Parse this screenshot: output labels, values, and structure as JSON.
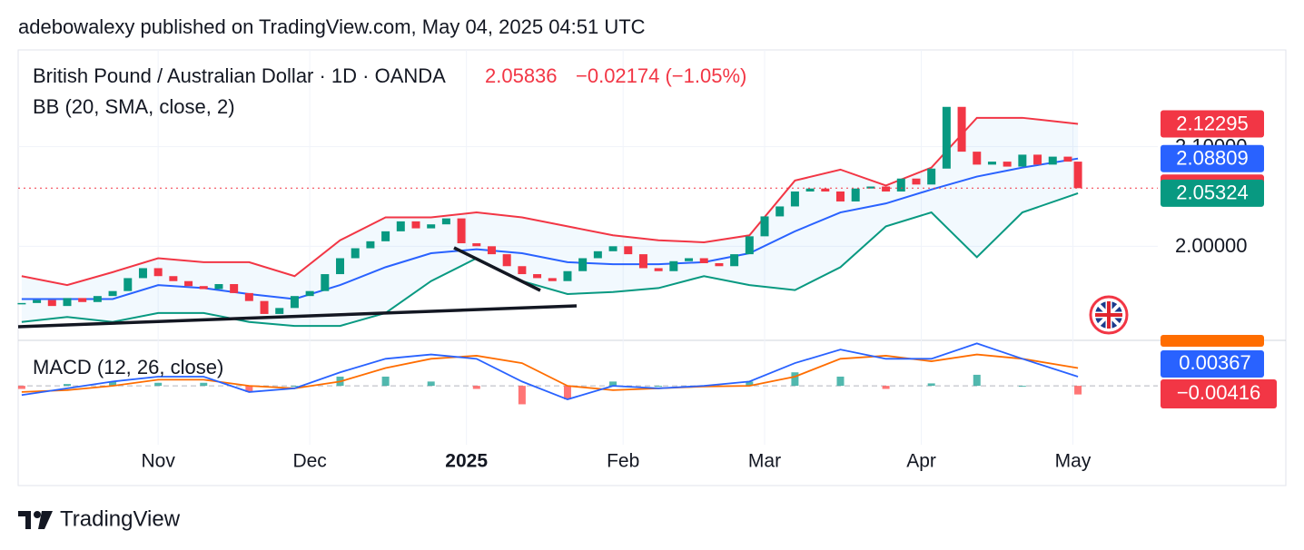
{
  "header": "adebowalexy published on TradingView.com, May 04, 2025 04:51 UTC",
  "footer": "TradingView",
  "chart_data": {
    "type": "candlestick",
    "title": "British Pound / Australian Dollar · 1D · OANDA",
    "last_price": "2.05836",
    "change": "−0.02174 (−1.05%)",
    "xlim": [
      3.3,
      227.9
    ],
    "ylim": [
      1.9055,
      2.1972
    ],
    "yticks": [
      {
        "value": 2.0,
        "label": "2.00000"
      },
      {
        "value": 2.1,
        "label": "2.10000"
      }
    ],
    "xticks": [
      {
        "value": 31,
        "label": "Nov"
      },
      {
        "value": 61,
        "label": "Dec"
      },
      {
        "value": 92,
        "label": "2025"
      },
      {
        "value": 123,
        "label": "Feb"
      },
      {
        "value": 151,
        "label": "Mar"
      },
      {
        "value": 182,
        "label": "Apr"
      },
      {
        "value": 212,
        "label": "May"
      }
    ],
    "grid": true,
    "up_color": "#089981",
    "down_color": "#f23645",
    "candles": {
      "x": [
        4,
        7,
        10,
        13,
        16,
        19,
        22,
        25,
        28,
        31,
        34,
        37,
        40,
        43,
        46,
        49,
        52,
        55,
        58,
        61,
        64,
        67,
        70,
        73,
        76,
        79,
        82,
        85,
        88,
        91,
        94,
        97,
        100,
        103,
        106,
        109,
        112,
        115,
        118,
        121,
        124,
        127,
        130,
        133,
        136,
        139,
        142,
        145,
        148,
        151,
        154,
        157,
        160,
        163,
        166,
        169,
        172,
        175,
        178,
        181,
        184,
        187,
        190,
        193,
        196,
        199,
        202,
        205,
        208,
        211,
        213
      ],
      "close": [
        1.943,
        1.946,
        1.94,
        1.948,
        1.944,
        1.95,
        1.955,
        1.968,
        1.978,
        1.97,
        1.965,
        1.96,
        1.957,
        1.962,
        1.953,
        1.945,
        1.932,
        1.938,
        1.95,
        1.955,
        1.972,
        1.988,
        1.998,
        2.005,
        2.015,
        2.025,
        2.018,
        2.022,
        2.028,
        2.003,
        2.0,
        1.992,
        1.98,
        1.972,
        1.968,
        1.965,
        1.975,
        1.988,
        1.995,
        2.0,
        1.992,
        1.978,
        1.975,
        1.985,
        1.988,
        1.983,
        1.98,
        1.992,
        2.01,
        2.03,
        2.04,
        2.055,
        2.058,
        2.055,
        2.045,
        2.058,
        2.06,
        2.055,
        2.068,
        2.062,
        2.078,
        2.14,
        2.095,
        2.082,
        2.085,
        2.08,
        2.092,
        2.082,
        2.09,
        2.085,
        2.05836
      ]
    },
    "bb": {
      "name": "BB (20, SMA, close, 2)",
      "colors": {
        "upper": "#f23645",
        "middle": "#2962ff",
        "lower": "#089981"
      },
      "x": [
        4,
        13,
        22,
        31,
        40,
        49,
        58,
        67,
        76,
        85,
        94,
        103,
        112,
        121,
        130,
        139,
        148,
        157,
        166,
        175,
        184,
        193,
        202,
        213
      ],
      "upper": [
        1.97,
        1.961,
        1.974,
        1.988,
        1.984,
        1.984,
        1.97,
        2.006,
        2.029,
        2.029,
        2.034,
        2.029,
        2.02,
        2.011,
        2.006,
        2.004,
        2.011,
        2.066,
        2.077,
        2.061,
        2.079,
        2.129,
        2.129,
        2.12295
      ],
      "middle": [
        1.947,
        1.947,
        1.947,
        1.961,
        1.958,
        1.952,
        1.947,
        1.961,
        1.979,
        1.993,
        1.997,
        1.993,
        1.984,
        1.982,
        1.982,
        1.984,
        1.993,
        2.015,
        2.034,
        2.043,
        2.057,
        2.07,
        2.079,
        2.08809
      ],
      "lower": [
        1.924,
        1.929,
        1.924,
        1.933,
        1.933,
        1.924,
        1.92,
        1.92,
        1.933,
        1.965,
        1.988,
        1.965,
        1.952,
        1.954,
        1.958,
        1.97,
        1.961,
        1.956,
        1.979,
        2.02,
        2.034,
        1.989,
        2.034,
        2.05324
      ]
    },
    "price_badges": [
      {
        "value": 2.12295,
        "label": "2.12295",
        "color": "#f23645"
      },
      {
        "value": 2.08809,
        "label": "2.08809",
        "color": "#2962ff"
      },
      {
        "value": 2.05836,
        "label": "2.05836",
        "color": "#f23645"
      },
      {
        "value": 2.05324,
        "label": "2.05324",
        "color": "#089981"
      }
    ],
    "macd": {
      "name": "MACD (12, 26, close)",
      "ylim": [
        -0.0081,
        0.0074
      ],
      "colors": {
        "macd": "#2962ff",
        "signal": "#ff6d00",
        "up": "#26a69a",
        "down": "#ff5252"
      },
      "x": [
        4,
        13,
        22,
        31,
        40,
        49,
        58,
        67,
        76,
        85,
        94,
        103,
        112,
        121,
        130,
        139,
        148,
        157,
        166,
        175,
        184,
        193,
        202,
        213
      ],
      "macd": [
        -0.0015,
        -0.0004,
        0.0007,
        0.0015,
        0.0015,
        -0.001,
        -0.0004,
        0.0022,
        0.0044,
        0.0051,
        0.0044,
        0.0007,
        -0.0022,
        0,
        -0.0004,
        0,
        0.0007,
        0.0037,
        0.0059,
        0.0044,
        0.0044,
        0.0069,
        0.0044,
        0.0015
      ],
      "signal": [
        -0.001,
        -0.0007,
        0,
        0.001,
        0.001,
        0,
        -0.0004,
        0.0007,
        0.0029,
        0.0044,
        0.0049,
        0.0037,
        0,
        -0.0007,
        -0.0004,
        -0.0001,
        0,
        0.0015,
        0.0044,
        0.0049,
        0.004,
        0.0051,
        0.0044,
        0.0029
      ],
      "histogram": [
        -0.0005,
        0.0003,
        0.0007,
        0.0005,
        0.0005,
        -0.001,
        0,
        0.0015,
        0.0015,
        0.0007,
        -0.0005,
        -0.003,
        -0.0022,
        0.0007,
        0,
        0.0001,
        0.0007,
        0.0022,
        0.0015,
        -0.0005,
        0.0004,
        0.0018,
        0,
        -0.0014
      ],
      "badges": [
        "0.00367",
        "−0.00416"
      ]
    }
  }
}
